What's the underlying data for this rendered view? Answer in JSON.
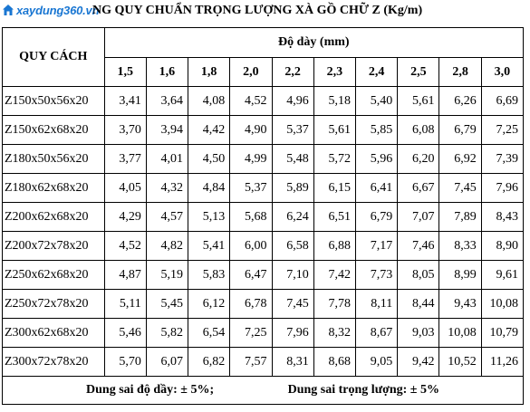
{
  "header": {
    "watermark": "xaydung360.vn",
    "title": "NG QUY CHUẨN TRỌNG LƯỢNG XÀ GỒ CHỮ  Z (Kg/m)"
  },
  "table": {
    "spec_header": "QUY CÁCH",
    "thickness_header": "Độ dày (mm)",
    "thicknesses": [
      "1,5",
      "1,6",
      "1,8",
      "2,0",
      "2,2",
      "2,3",
      "2,4",
      "2,5",
      "2,8",
      "3,0"
    ],
    "rows": [
      {
        "spec": "Z150x50x56x20",
        "values": [
          "3,41",
          "3,64",
          "4,08",
          "4,52",
          "4,96",
          "5,18",
          "5,40",
          "5,61",
          "6,26",
          "6,69"
        ]
      },
      {
        "spec": "Z150x62x68x20",
        "values": [
          "3,70",
          "3,94",
          "4,42",
          "4,90",
          "5,37",
          "5,61",
          "5,85",
          "6,08",
          "6,79",
          "7,25"
        ]
      },
      {
        "spec": "Z180x50x56x20",
        "values": [
          "3,77",
          "4,01",
          "4,50",
          "4,99",
          "5,48",
          "5,72",
          "5,96",
          "6,20",
          "6,92",
          "7,39"
        ]
      },
      {
        "spec": "Z180x62x68x20",
        "values": [
          "4,05",
          "4,32",
          "4,84",
          "5,37",
          "5,89",
          "6,15",
          "6,41",
          "6,67",
          "7,45",
          "7,96"
        ]
      },
      {
        "spec": "Z200x62x68x20",
        "values": [
          "4,29",
          "4,57",
          "5,13",
          "5,68",
          "6,24",
          "6,51",
          "6,79",
          "7,07",
          "7,89",
          "8,43"
        ]
      },
      {
        "spec": "Z200x72x78x20",
        "values": [
          "4,52",
          "4,82",
          "5,41",
          "6,00",
          "6,58",
          "6,88",
          "7,17",
          "7,46",
          "8,33",
          "8,90"
        ]
      },
      {
        "spec": "Z250x62x68x20",
        "values": [
          "4,87",
          "5,19",
          "5,83",
          "6,47",
          "7,10",
          "7,42",
          "7,73",
          "8,05",
          "8,99",
          "9,61"
        ]
      },
      {
        "spec": "Z250x72x78x20",
        "values": [
          "5,11",
          "5,45",
          "6,12",
          "6,78",
          "7,45",
          "7,78",
          "8,11",
          "8,44",
          "9,43",
          "10,08"
        ]
      },
      {
        "spec": "Z300x62x68x20",
        "values": [
          "5,46",
          "5,82",
          "6,54",
          "7,25",
          "7,96",
          "8,32",
          "8,67",
          "9,03",
          "10,08",
          "10,79"
        ]
      },
      {
        "spec": "Z300x72x78x20",
        "values": [
          "5,70",
          "6,07",
          "6,82",
          "7,57",
          "8,31",
          "8,68",
          "9,05",
          "9,42",
          "10,52",
          "11,26"
        ]
      }
    ]
  },
  "footer": {
    "thickness_tolerance": "Dung sai độ dầy: ± 5%;",
    "weight_tolerance": "Dung sai trọng lượng: ± 5%"
  },
  "colors": {
    "watermark": "#1976d2"
  }
}
